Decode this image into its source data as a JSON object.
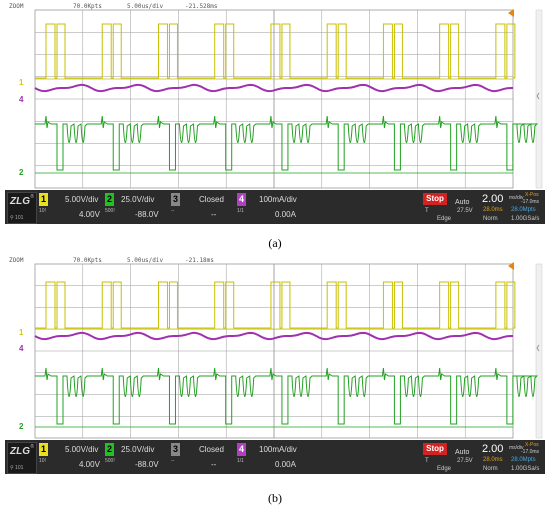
{
  "panels": [
    {
      "label": "(a)",
      "header": {
        "zoom": "ZOOM",
        "points": "70.0Kpts",
        "timebase": "5.00us/div",
        "delay": "-21.528ms"
      },
      "channels": [
        {
          "num": "1",
          "scale": "5.00V/div",
          "offset": "4.00V",
          "color": "#e8e020",
          "sub": "10!"
        },
        {
          "num": "2",
          "scale": "25.0V/div",
          "offset": "-88.0V",
          "color": "#22c022",
          "sub": "500!"
        },
        {
          "num": "3",
          "scale": "Closed",
          "offset": "--",
          "color": "#888888",
          "sub": "--"
        },
        {
          "num": "4",
          "scale": "100mA/div",
          "offset": "0.00A",
          "color": "#b040c0",
          "sub": "1/1"
        }
      ],
      "status": {
        "run": "Stop",
        "mode": "Auto",
        "trig_type": "T",
        "trig_level": "27.5V",
        "edge": "Edge",
        "timescale": "2.00",
        "unit": "ms/div",
        "xpos_label": "X-Pos",
        "xpos": "-17.0ms",
        "mem": "28.0ms",
        "mpts": "28.0Mpts",
        "acq": "Norm",
        "rate": "1.00GSa/s"
      }
    },
    {
      "label": "(b)",
      "header": {
        "zoom": "ZOOM",
        "points": "70.0Kpts",
        "timebase": "5.00us/div",
        "delay": "-21.18ms"
      },
      "channels": [
        {
          "num": "1",
          "scale": "5.00V/div",
          "offset": "4.00V",
          "color": "#e8e020",
          "sub": "10!"
        },
        {
          "num": "2",
          "scale": "25.0V/div",
          "offset": "-88.0V",
          "color": "#22c022",
          "sub": "500!"
        },
        {
          "num": "3",
          "scale": "Closed",
          "offset": "--",
          "color": "#888888",
          "sub": "--"
        },
        {
          "num": "4",
          "scale": "100mA/div",
          "offset": "0.00A",
          "color": "#b040c0",
          "sub": "1/1"
        }
      ],
      "status": {
        "run": "Stop",
        "mode": "Auto",
        "trig_type": "T",
        "trig_level": "27.5V",
        "edge": "Edge",
        "timescale": "2.00",
        "unit": "ms/div",
        "xpos_label": "X-Pos",
        "xpos": "-17.0ms",
        "mem": "28.0ms",
        "mpts": "28.0Mpts",
        "acq": "Norm",
        "rate": "1.00GSa/s"
      }
    }
  ],
  "trace_markers": [
    "1",
    "4",
    "2"
  ],
  "colors": {
    "ch1": "#e8e020",
    "ch2": "#22a022",
    "ch4": "#a030b0",
    "grid": "#9a9a9a",
    "trigger": "#e8860c"
  }
}
